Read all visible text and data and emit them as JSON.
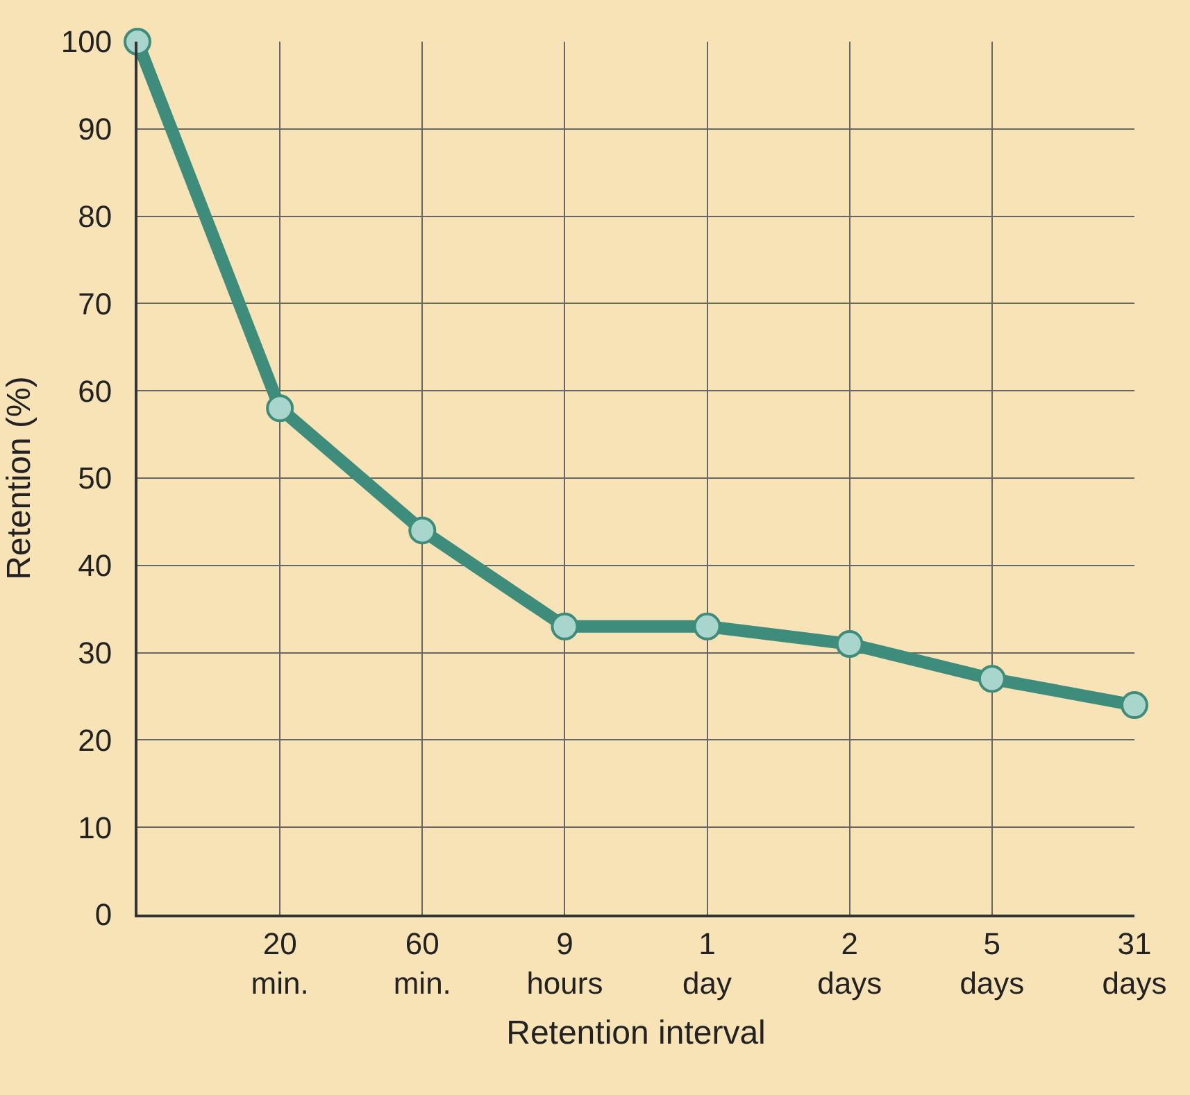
{
  "chart_data": {
    "type": "line",
    "xlabel": "Retention interval",
    "ylabel": "Retention (%)",
    "categories": [
      null,
      "20\nmin.",
      "60\nmin.",
      "9\nhours",
      "1\nday",
      "2\ndays",
      "5\ndays",
      "31\ndays"
    ],
    "series": [
      {
        "color": "#3e8c7c",
        "values": [
          100,
          58,
          44,
          33,
          33,
          31,
          27,
          24
        ]
      }
    ],
    "ylim": [
      0,
      100
    ],
    "yticks": [
      0,
      10,
      20,
      30,
      40,
      50,
      60,
      70,
      80,
      90,
      100
    ],
    "grid": true,
    "legend": false,
    "marker": "circle",
    "line_style": "solid"
  }
}
